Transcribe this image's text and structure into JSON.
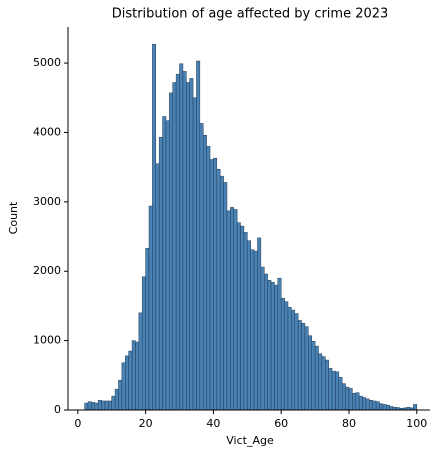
{
  "chart_data": {
    "type": "histogram",
    "title": "Distribution of age affected by crime 2023",
    "x_label": "Vict_Age",
    "y_label": "Count",
    "bins": [
      2,
      3,
      4,
      5,
      6,
      7,
      8,
      9,
      10,
      11,
      12,
      13,
      14,
      15,
      16,
      17,
      18,
      19,
      20,
      21,
      22,
      23,
      24,
      25,
      26,
      27,
      28,
      29,
      30,
      31,
      32,
      33,
      34,
      35,
      36,
      37,
      38,
      39,
      40,
      41,
      42,
      43,
      44,
      45,
      46,
      47,
      48,
      49,
      50,
      51,
      52,
      53,
      54,
      55,
      56,
      57,
      58,
      59,
      60,
      61,
      62,
      63,
      64,
      65,
      66,
      67,
      68,
      69,
      70,
      71,
      72,
      73,
      74,
      75,
      76,
      77,
      78,
      79,
      80,
      81,
      82,
      83,
      84,
      85,
      86,
      87,
      88,
      89,
      90,
      91,
      92,
      93,
      94,
      95,
      96,
      97,
      98,
      99,
      100
    ],
    "counts": [
      100,
      120,
      110,
      100,
      140,
      130,
      130,
      130,
      200,
      300,
      430,
      680,
      780,
      850,
      1000,
      980,
      1400,
      1920,
      2330,
      2940,
      5270,
      3550,
      3930,
      4230,
      4170,
      4570,
      4720,
      4840,
      4990,
      4880,
      4720,
      4780,
      4500,
      5030,
      4130,
      3960,
      3800,
      3610,
      3630,
      3470,
      3370,
      3280,
      2870,
      2920,
      2890,
      2700,
      2650,
      2560,
      2440,
      2310,
      2290,
      2480,
      2060,
      1960,
      1870,
      1840,
      1800,
      1900,
      1610,
      1560,
      1480,
      1440,
      1390,
      1290,
      1250,
      1200,
      1070,
      990,
      920,
      810,
      770,
      720,
      600,
      560,
      550,
      470,
      380,
      330,
      310,
      240,
      250,
      200,
      180,
      160,
      140,
      130,
      120,
      90,
      80,
      70,
      50,
      40,
      35,
      25,
      30,
      40,
      30,
      80
    ],
    "color": "#4a82b3",
    "xlim": [
      -2.9,
      103.9
    ],
    "ylim": [
      0,
      5520
    ],
    "xticks": [
      0,
      20,
      40,
      60,
      80,
      100
    ],
    "yticks": [
      0,
      1000,
      2000,
      3000,
      4000,
      5000
    ]
  }
}
